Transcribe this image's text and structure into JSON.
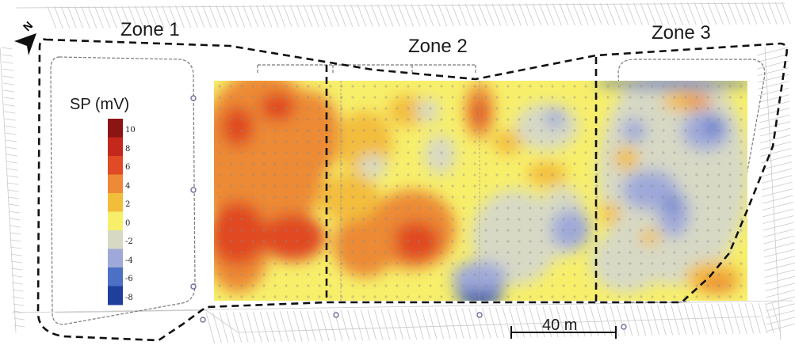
{
  "zones": [
    "Zone 1",
    "Zone 2",
    "Zone 3"
  ],
  "legend": {
    "title": "SP (mV)",
    "ticks": [
      "10",
      "8",
      "6",
      "4",
      "2",
      "0",
      "-2",
      "-4",
      "-6",
      "-8"
    ],
    "colors": [
      "#8b1414",
      "#c4271c",
      "#e04a24",
      "#ec8a36",
      "#f3bd3c",
      "#f7ef6a",
      "#d7d9c5",
      "#9fa9d9",
      "#4c70c4",
      "#1f3f9a"
    ]
  },
  "scale_bar": {
    "label": "40 m"
  },
  "north": {
    "label": "N",
    "icon": "north-arrow-icon"
  }
}
